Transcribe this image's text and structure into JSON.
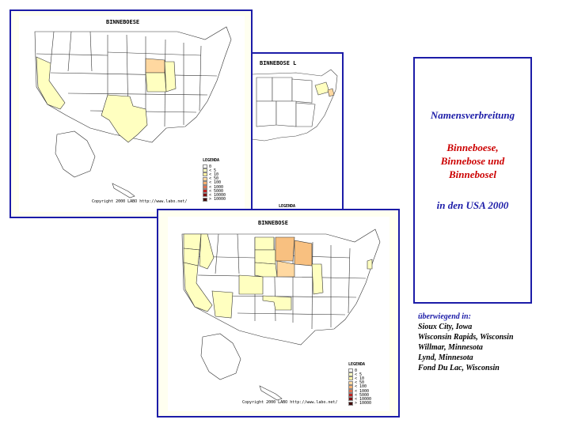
{
  "maps": {
    "binneboese": {
      "title": "BINNEBOESE",
      "copyright": "Copyright 2000 LABO http://www.labo.net/"
    },
    "binnebosel": {
      "title": "BINNEBOSE L"
    },
    "binnebose": {
      "title": "BINNEBOSE",
      "copyright": "Copyright 2000 LABO http://www.labo.net/"
    }
  },
  "legend": {
    "title": "LEGENDA",
    "partial_title": "LEGENDA",
    "items": [
      {
        "label": "0",
        "color": "#ffffff"
      },
      {
        "label": "< 5",
        "color": "#ffffc0"
      },
      {
        "label": "< 10",
        "color": "#fff0a0"
      },
      {
        "label": "< 50",
        "color": "#ffd8a0"
      },
      {
        "label": "< 100",
        "color": "#f8b070"
      },
      {
        "label": "< 1000",
        "color": "#e07050"
      },
      {
        "label": "< 5000",
        "color": "#c02020"
      },
      {
        "label": "< 10000",
        "color": "#801010"
      },
      {
        "label": "> 10000",
        "color": "#400808"
      }
    ]
  },
  "info": {
    "heading": "Namensverbreitung",
    "names": [
      "Binneboese,",
      "Binnebose und",
      "Binnebosel"
    ],
    "year": "in den USA 2000"
  },
  "places": {
    "heading": "überwiegend in:",
    "items": [
      "Sioux City, Iowa",
      "Wisconsin Rapids, Wisconsin",
      "Willmar, Minnesota",
      "Lynd, Minnesota",
      "Fond Du Lac, Wisconsin"
    ]
  }
}
